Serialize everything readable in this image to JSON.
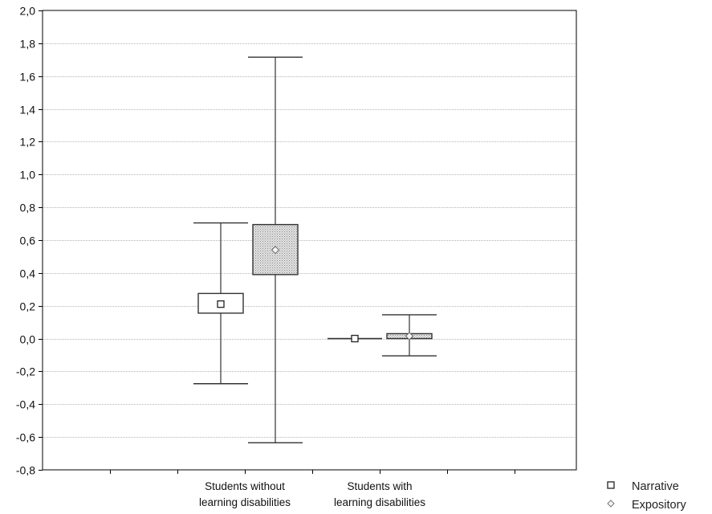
{
  "chart_data": {
    "type": "box",
    "title": "",
    "xlabel": "",
    "ylabel": "",
    "ylim": [
      -0.8,
      2.0
    ],
    "y_ticks": [
      "2,0",
      "1,8",
      "1,6",
      "1,4",
      "1,2",
      "1,0",
      "0,8",
      "0,6",
      "0,4",
      "0,2",
      "0,0",
      "-0,2",
      "-0,4",
      "-0,6",
      "-0,8"
    ],
    "y_tick_values": [
      2.0,
      1.8,
      1.6,
      1.4,
      1.2,
      1.0,
      0.8,
      0.6,
      0.4,
      0.2,
      0.0,
      -0.2,
      -0.4,
      -0.6,
      -0.8
    ],
    "grid": true,
    "legend_position": "bottom-right",
    "categories": [
      {
        "lines": [
          "Students without",
          "learning disabilities"
        ]
      },
      {
        "lines": [
          "Students with",
          "learning disabilities"
        ]
      }
    ],
    "series": [
      {
        "name": "Narrative",
        "marker": "square",
        "fill": "#ffffff",
        "groups": [
          {
            "mean": 0.21,
            "box_low": 0.155,
            "box_high": 0.275,
            "whisker_low": -0.275,
            "whisker_high": 0.705
          },
          {
            "mean": 0.0,
            "box_low": 0.0,
            "box_high": 0.0,
            "whisker_low": 0.0,
            "whisker_high": 0.0
          }
        ]
      },
      {
        "name": "Expository",
        "marker": "diamond",
        "fill": "#d9d9d9",
        "groups": [
          {
            "mean": 0.54,
            "box_low": 0.39,
            "box_high": 0.695,
            "whisker_low": -0.635,
            "whisker_high": 1.715
          },
          {
            "mean": 0.015,
            "box_low": 0.0,
            "box_high": 0.03,
            "whisker_low": -0.105,
            "whisker_high": 0.145
          }
        ]
      }
    ]
  },
  "colors": {
    "axis": "#000000",
    "grid": "#b5b5b5",
    "line": "#333333",
    "expository_fill": "#d9d9d9"
  }
}
